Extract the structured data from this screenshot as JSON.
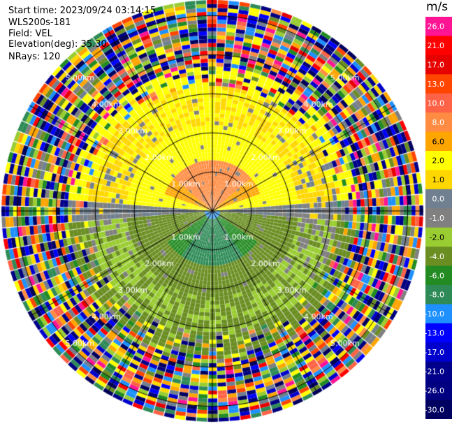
{
  "header": {
    "start_time": "Start time: 2023/09/24 03:14:15",
    "instrument": "WLS200s-181",
    "field": "Field: VEL",
    "elevation": "Elevation(deg): 35.30",
    "nrays": "NRays: 120"
  },
  "chart_data": {
    "type": "ppi",
    "field": "VEL",
    "units": "m/s",
    "nrays": 120,
    "elevation_deg": 35.3,
    "range_rings_km": [
      1.0,
      2.0,
      3.0,
      4.0,
      5.0
    ],
    "range_ring_labels": [
      "1.00km",
      "2.00km",
      "3.00km",
      "4.00km",
      "5.00km"
    ],
    "azimuth_spokes_deg": [
      0,
      30,
      60,
      90,
      120,
      150,
      180,
      210,
      240,
      270,
      300,
      330
    ],
    "max_range_km": 5.4,
    "colorbar": {
      "unit_label": "m/s",
      "ticks": [
        "26.0",
        "21.0",
        "17.0",
        "13.0",
        "10.0",
        "8.0",
        "6.0",
        "2.0",
        "1.0",
        "0.0",
        "-1.0",
        "-2.0",
        "-4.0",
        "-6.0",
        "-8.0",
        "-10.0",
        "-13.0",
        "-17.0",
        "-21.0",
        "-26.0",
        "-30.0"
      ],
      "colors": [
        "#ff1493",
        "#ff0000",
        "#e60000",
        "#ff4500",
        "#ff6347",
        "#ff8c42",
        "#ffa500",
        "#ffff00",
        "#ffd700",
        "#708090",
        "#808080",
        "#9acd32",
        "#6b8e23",
        "#228b22",
        "#2e8b57",
        "#1e90ff",
        "#0000ff",
        "#0000cd",
        "#00008b",
        "#000080",
        "#000060"
      ]
    },
    "velocity_structure": {
      "north_core_range_km": [
        0.3,
        1.3
      ],
      "north_core_velocity_ms": 8.0,
      "north_mid_velocity_ms": 2.0,
      "south_core_velocity_ms": -8.0,
      "south_mid_velocity_ms": -2.0,
      "near_zero_band_velocity_ms": 0.0,
      "clean_data_max_range_km": 3.2,
      "noise_min_range_km": 3.7
    }
  }
}
